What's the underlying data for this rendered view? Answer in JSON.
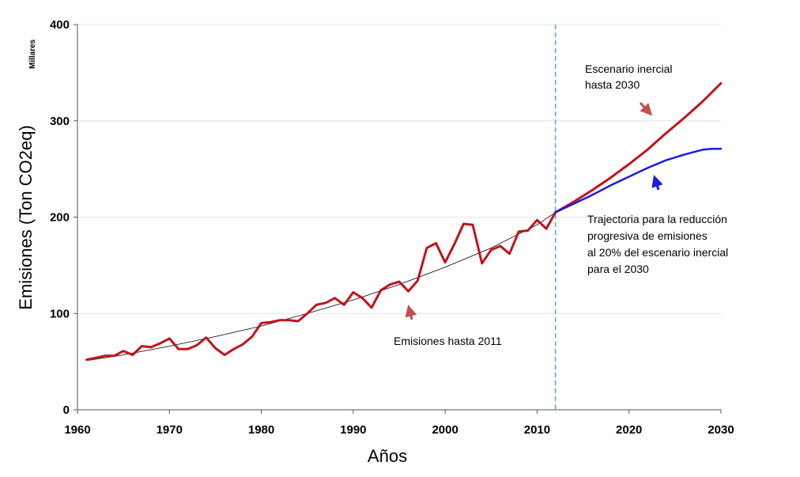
{
  "chart_data": {
    "type": "line",
    "title": "",
    "xlabel": "Años",
    "ylabel": "Emisiones (Ton CO2eq)",
    "y_unit_label": "Millares",
    "xlim": [
      1960,
      2030
    ],
    "ylim": [
      0,
      400
    ],
    "x_ticks": [
      1960,
      1970,
      1980,
      1990,
      2000,
      2010,
      2020,
      2030
    ],
    "y_ticks": [
      0,
      100,
      200,
      300,
      400
    ],
    "grid": true,
    "legend": "none",
    "vertical_line_x": 2012,
    "series": [
      {
        "name": "",
        "color": "#c0141c",
        "style": "solid-thick",
        "x": [
          1961,
          1962,
          1963,
          1964,
          1965,
          1966,
          1967,
          1968,
          1969,
          1970,
          1971,
          1972,
          1973,
          1974,
          1975,
          1976,
          1977,
          1978,
          1979,
          1980,
          1981,
          1982,
          1983,
          1984,
          1985,
          1986,
          1987,
          1988,
          1989,
          1990,
          1991,
          1992,
          1993,
          1994,
          1995,
          1996,
          1997,
          1998,
          1999,
          2000,
          2001,
          2002,
          2003,
          2004,
          2005,
          2006,
          2007,
          2008,
          2009,
          2010,
          2011,
          2012
        ],
        "values": [
          52,
          54,
          56,
          56,
          61,
          57,
          66,
          65,
          69,
          74,
          63,
          63,
          67,
          75,
          64,
          57,
          63,
          68,
          76,
          90,
          91,
          93,
          93,
          92,
          100,
          109,
          111,
          116,
          109,
          122,
          116,
          106,
          124,
          130,
          133,
          123,
          134,
          168,
          173,
          153,
          172,
          193,
          192,
          152,
          166,
          170,
          162,
          185,
          186,
          197,
          188,
          205
        ]
      },
      {
        "name": "",
        "color": "#000000",
        "style": "thin",
        "x": [
          1961,
          1965,
          1970,
          1975,
          1980,
          1985,
          1990,
          1995,
          2000,
          2005,
          2010,
          2012
        ],
        "values": [
          51,
          57,
          66,
          76,
          87,
          100,
          114,
          130,
          148,
          168,
          192,
          205
        ]
      },
      {
        "name": "",
        "color": "#c0141c",
        "style": "solid-thick",
        "x": [
          2012,
          2014,
          2016,
          2018,
          2020,
          2022,
          2024,
          2026,
          2028,
          2030
        ],
        "values": [
          205,
          216,
          228,
          241,
          255,
          270,
          287,
          303,
          320,
          339
        ]
      },
      {
        "name": "",
        "color": "#1a1aeb",
        "style": "solid",
        "x": [
          2012,
          2014,
          2016,
          2018,
          2020,
          2022,
          2024,
          2026,
          2028,
          2029,
          2030
        ],
        "values": [
          205,
          214,
          223,
          233,
          242,
          251,
          259,
          265,
          270,
          271,
          271
        ]
      }
    ],
    "annotations": [
      {
        "lines": [
          "Escenario inercial",
          "hasta 2030"
        ],
        "arrow_color": "#c0504d"
      },
      {
        "lines": [
          "Trajectoria para la reducción",
          "progresiva de emisiones",
          "al 20% del escenario inercial",
          "para el 2030"
        ],
        "arrow_color": "#1a1aeb"
      },
      {
        "lines": [
          "Emisiones hasta 2011"
        ],
        "arrow_color": "#c0504d"
      }
    ]
  }
}
